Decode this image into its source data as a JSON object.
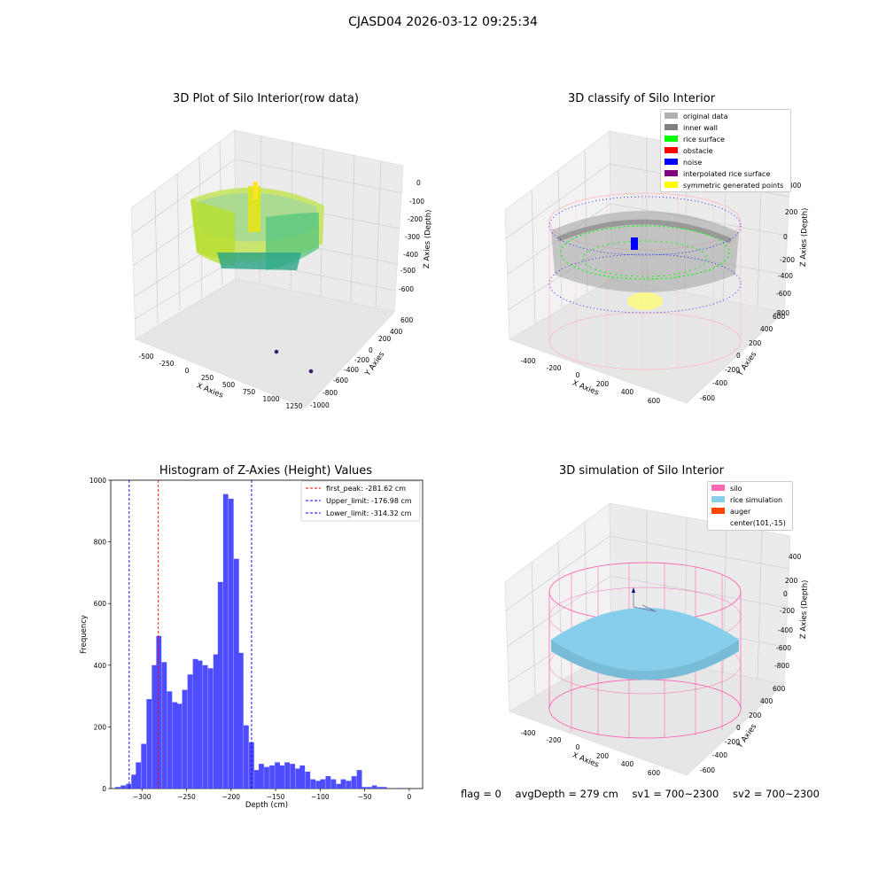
{
  "figure": {
    "suptitle": "CJASD04 2026-03-12 09:25:34"
  },
  "panels": {
    "raw": {
      "title": "3D Plot of Silo Interior(row data)",
      "xlabel": "X Axies",
      "ylabel": "Y Axies",
      "zlabel": "Z Axies (Depth)",
      "xticks": [
        "-500",
        "-250",
        "0",
        "250",
        "500",
        "750",
        "1000",
        "1250"
      ],
      "yticks": [
        "600",
        "400",
        "200",
        "0",
        "-200",
        "-400",
        "-600",
        "-800",
        "-1000"
      ],
      "zticks": [
        "0",
        "-100",
        "-200",
        "-300",
        "-400",
        "-500",
        "-600"
      ]
    },
    "classify": {
      "title": "3D classify of Silo Interior",
      "xlabel": "X Axies",
      "ylabel": "Y Axies",
      "zlabel": "Z Axies (Depth)",
      "xticks": [
        "-400",
        "-200",
        "0",
        "200",
        "400",
        "600"
      ],
      "yticks": [
        "600",
        "400",
        "200",
        "0",
        "-200",
        "-400",
        "-600"
      ],
      "zticks": [
        "400",
        "200",
        "0",
        "-200",
        "-400",
        "-600",
        "-800"
      ],
      "legend": [
        {
          "label": "original data",
          "color": "#b0b0b0"
        },
        {
          "label": "inner wall",
          "color": "#808080"
        },
        {
          "label": "rice surface",
          "color": "#00ff00"
        },
        {
          "label": "obstacle",
          "color": "#ff0000"
        },
        {
          "label": "noise",
          "color": "#0000ff"
        },
        {
          "label": "interpolated rice surface",
          "color": "#800080"
        },
        {
          "label": "symmetric generated points",
          "color": "#ffff00"
        }
      ]
    },
    "simulation": {
      "title": "3D simulation of Silo Interior",
      "xlabel": "X Axies",
      "ylabel": "Y Axies",
      "zlabel": "Z Axies (Depth)",
      "xticks": [
        "-400",
        "-200",
        "0",
        "200",
        "400",
        "600"
      ],
      "yticks": [
        "600",
        "400",
        "200",
        "0",
        "-200",
        "-400",
        "-600"
      ],
      "zticks": [
        "400",
        "200",
        "0",
        "-200",
        "-400",
        "-600",
        "-800"
      ],
      "legend": [
        {
          "label": "silo",
          "color": "#ff69b4"
        },
        {
          "label": "rice simulation",
          "color": "#87ceeb"
        },
        {
          "label": "auger",
          "color": "#ff4500"
        },
        {
          "label": "center(101,-15)",
          "color": ""
        }
      ]
    }
  },
  "status_line": {
    "flag": "flag = 0",
    "avg": "avgDepth = 279 cm",
    "sv1": "sv1 = 700~2300",
    "sv2": "sv2 = 700~2300"
  },
  "colors": {
    "histogram_bar": "#4d4dff",
    "peak_line": "#ff0000",
    "limit_line": "#0000ff",
    "silo_wire": "#ff69b4",
    "rice": "#87ceeb",
    "grid_pane": "#f2f2f2"
  },
  "chart_data": {
    "type": "bar",
    "title": "Histogram of Z-Axies (Height) Values",
    "xlabel": "Depth (cm)",
    "ylabel": "Frequency",
    "xlim": [
      -335,
      15
    ],
    "ylim": [
      0,
      1000
    ],
    "xticks": [
      -300,
      -250,
      -200,
      -150,
      -100,
      -50,
      0
    ],
    "yticks": [
      0,
      200,
      400,
      600,
      800,
      1000
    ],
    "bin_width": 5.75,
    "bins": [
      {
        "x": -327,
        "count": 5
      },
      {
        "x": -321,
        "count": 10
      },
      {
        "x": -315,
        "count": 15
      },
      {
        "x": -309,
        "count": 45
      },
      {
        "x": -304,
        "count": 85
      },
      {
        "x": -298,
        "count": 145
      },
      {
        "x": -292,
        "count": 290
      },
      {
        "x": -286,
        "count": 400
      },
      {
        "x": -281,
        "count": 495
      },
      {
        "x": -275,
        "count": 410
      },
      {
        "x": -269,
        "count": 315
      },
      {
        "x": -263,
        "count": 280
      },
      {
        "x": -258,
        "count": 275
      },
      {
        "x": -252,
        "count": 320
      },
      {
        "x": -246,
        "count": 370
      },
      {
        "x": -240,
        "count": 420
      },
      {
        "x": -235,
        "count": 415
      },
      {
        "x": -229,
        "count": 400
      },
      {
        "x": -223,
        "count": 390
      },
      {
        "x": -217,
        "count": 435
      },
      {
        "x": -212,
        "count": 670
      },
      {
        "x": -206,
        "count": 955
      },
      {
        "x": -200,
        "count": 940
      },
      {
        "x": -194,
        "count": 745
      },
      {
        "x": -189,
        "count": 440
      },
      {
        "x": -183,
        "count": 205
      },
      {
        "x": -177,
        "count": 150
      },
      {
        "x": -171,
        "count": 60
      },
      {
        "x": -166,
        "count": 80
      },
      {
        "x": -160,
        "count": 70
      },
      {
        "x": -154,
        "count": 75
      },
      {
        "x": -148,
        "count": 85
      },
      {
        "x": -143,
        "count": 75
      },
      {
        "x": -137,
        "count": 85
      },
      {
        "x": -131,
        "count": 80
      },
      {
        "x": -125,
        "count": 65
      },
      {
        "x": -120,
        "count": 75
      },
      {
        "x": -114,
        "count": 55
      },
      {
        "x": -108,
        "count": 30
      },
      {
        "x": -102,
        "count": 25
      },
      {
        "x": -97,
        "count": 30
      },
      {
        "x": -91,
        "count": 40
      },
      {
        "x": -85,
        "count": 30
      },
      {
        "x": -79,
        "count": 15
      },
      {
        "x": -74,
        "count": 30
      },
      {
        "x": -68,
        "count": 25
      },
      {
        "x": -62,
        "count": 40
      },
      {
        "x": -56,
        "count": 60
      },
      {
        "x": -51,
        "count": 5
      },
      {
        "x": -45,
        "count": 5
      },
      {
        "x": -39,
        "count": 10
      },
      {
        "x": -33,
        "count": 5
      },
      {
        "x": -28,
        "count": 5
      },
      {
        "x": -10,
        "count": 2
      }
    ],
    "vlines": [
      {
        "x": -281.62,
        "label": "first_peak: -281.62 cm",
        "color": "#ff0000"
      },
      {
        "x": -176.98,
        "label": "Upper_limit: -176.98 cm",
        "color": "#0000ff"
      },
      {
        "x": -314.32,
        "label": "Lower_limit: -314.32 cm",
        "color": "#0000ff"
      }
    ]
  }
}
